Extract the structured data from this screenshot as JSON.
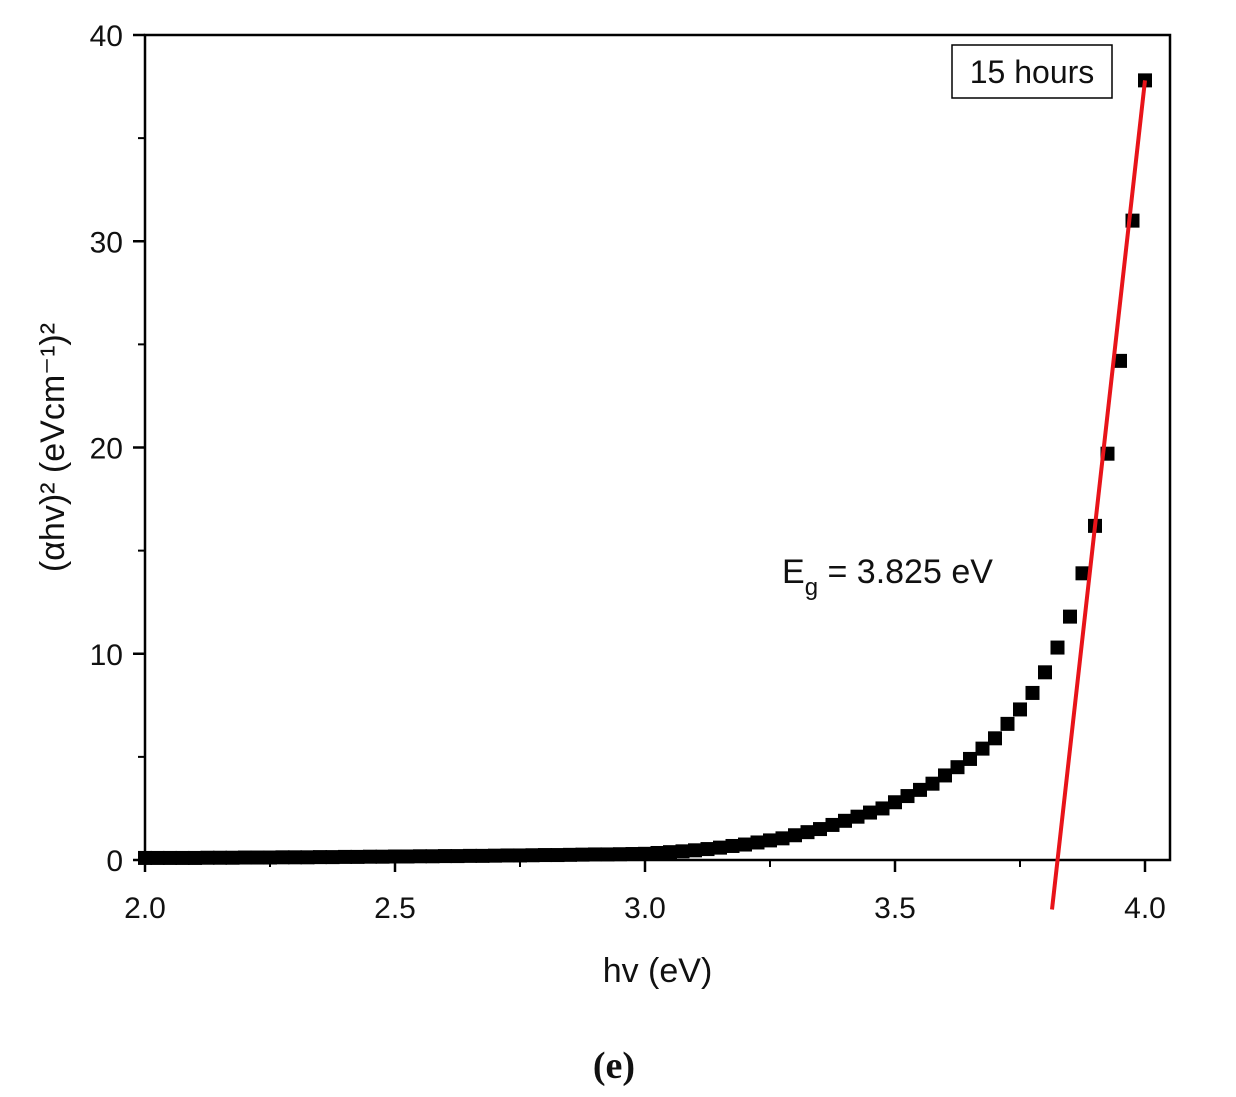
{
  "chart_data": {
    "type": "scatter",
    "xlabel": "hv (eV)",
    "ylabel": "(αhv)² (eVcm⁻¹)²",
    "caption": "(e)",
    "legend_box": "15 hours",
    "annotation": {
      "main": "E",
      "sub": "g",
      "rest": " = 3.825 eV"
    },
    "xlim": [
      2.0,
      4.05
    ],
    "ylim": [
      0,
      40
    ],
    "xticks": [
      {
        "value": 2,
        "label": "2.0"
      },
      {
        "value": 2.5,
        "label": "2.5"
      },
      {
        "value": 3,
        "label": "3.0"
      },
      {
        "value": 3.5,
        "label": "3.5"
      },
      {
        "value": 4,
        "label": "4.0"
      }
    ],
    "yticks": [
      0,
      10,
      20,
      30,
      40
    ],
    "x": [
      2,
      2.025,
      2.05,
      2.075,
      2.1,
      2.125,
      2.15,
      2.175,
      2.2,
      2.225,
      2.25,
      2.275,
      2.3,
      2.325,
      2.35,
      2.375,
      2.4,
      2.425,
      2.45,
      2.475,
      2.5,
      2.525,
      2.55,
      2.575,
      2.6,
      2.625,
      2.65,
      2.675,
      2.7,
      2.725,
      2.75,
      2.775,
      2.8,
      2.825,
      2.85,
      2.875,
      2.9,
      2.925,
      2.95,
      2.975,
      3,
      3.025,
      3.05,
      3.075,
      3.1,
      3.125,
      3.15,
      3.175,
      3.2,
      3.225,
      3.25,
      3.275,
      3.3,
      3.325,
      3.35,
      3.375,
      3.4,
      3.425,
      3.45,
      3.475,
      3.5,
      3.525,
      3.55,
      3.575,
      3.6,
      3.625,
      3.65,
      3.675,
      3.7,
      3.725,
      3.75,
      3.775,
      3.8,
      3.825,
      3.85,
      3.875,
      3.9,
      3.925,
      3.95,
      3.975,
      4
    ],
    "series": [
      {
        "color": "#000000",
        "values": [
          0.1,
          0.1,
          0.1,
          0.1,
          0.1,
          0.11,
          0.11,
          0.11,
          0.12,
          0.12,
          0.12,
          0.13,
          0.13,
          0.13,
          0.14,
          0.14,
          0.15,
          0.15,
          0.16,
          0.16,
          0.17,
          0.17,
          0.18,
          0.18,
          0.19,
          0.19,
          0.2,
          0.2,
          0.21,
          0.22,
          0.22,
          0.23,
          0.24,
          0.24,
          0.25,
          0.26,
          0.27,
          0.27,
          0.28,
          0.29,
          0.3,
          0.34,
          0.38,
          0.42,
          0.47,
          0.53,
          0.6,
          0.68,
          0.75,
          0.85,
          0.95,
          1.05,
          1.2,
          1.35,
          1.5,
          1.7,
          1.9,
          2.1,
          2.3,
          2.5,
          2.8,
          3.1,
          3.4,
          3.7,
          4.1,
          4.5,
          4.9,
          5.4,
          5.9,
          6.6,
          7.3,
          8.1,
          9.1,
          10.3,
          11.8,
          13.9,
          16.2,
          19.7,
          24.2,
          31,
          37.8
        ]
      }
    ],
    "fit": {
      "color": "#e8141a",
      "x": [
        3.814,
        4.0
      ],
      "values": [
        -2.4,
        37.8
      ]
    }
  }
}
